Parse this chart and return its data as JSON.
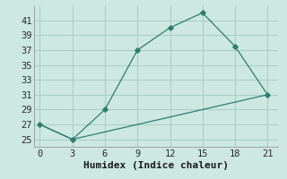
{
  "line1_x": [
    0,
    3,
    6,
    9,
    12,
    15,
    18,
    21
  ],
  "line1_y": [
    27,
    25,
    29,
    37,
    40,
    42,
    37.5,
    31
  ],
  "line2_x": [
    0,
    3,
    6,
    9,
    12,
    15,
    18,
    21
  ],
  "line2_y": [
    27,
    25,
    26,
    27,
    28,
    29,
    30,
    31
  ],
  "color": "#2e7d6e",
  "xlabel": "Humidex (Indice chaleur)",
  "xlim": [
    -0.5,
    22
  ],
  "ylim": [
    24,
    43
  ],
  "xticks": [
    0,
    3,
    6,
    9,
    12,
    15,
    18,
    21
  ],
  "yticks": [
    25,
    27,
    29,
    31,
    33,
    35,
    37,
    39,
    41
  ],
  "bg_color": "#cce8e0",
  "grid_color": "#aacfc8",
  "xlabel_fontsize": 8,
  "tick_fontsize": 7.5
}
